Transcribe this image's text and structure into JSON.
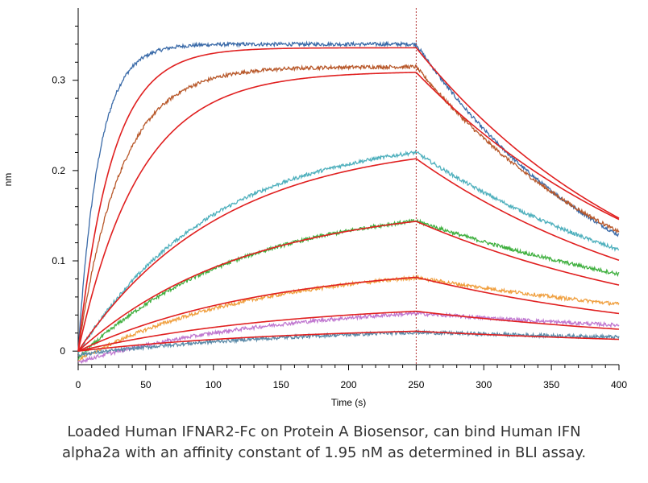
{
  "chart_data": {
    "type": "line",
    "title": "",
    "xlabel": "Time (s)",
    "ylabel": "nm",
    "xlim": [
      0,
      400
    ],
    "ylim": [
      -0.015,
      0.38
    ],
    "x_ticks": [
      0,
      50,
      100,
      150,
      200,
      250,
      300,
      350,
      400
    ],
    "y_ticks": [
      0,
      0.1,
      0.2,
      0.3
    ],
    "y_tick_labels": [
      "0",
      "0.1",
      "0.2",
      "0.3"
    ],
    "grid": false,
    "legend": "none",
    "dissociation_start": 250,
    "fit_color": "#e02020",
    "marker_line_color": "#b03030",
    "series": [
      {
        "color": "#3a6aa8",
        "plateau": 0.34,
        "k_on": 0.065,
        "k_off": 0.0065,
        "start": 0
      },
      {
        "color": "#b8582a",
        "plateau": 0.315,
        "k_on": 0.032,
        "k_off": 0.0058,
        "start": 0
      },
      {
        "color": "#4fb0bd",
        "plateau": 0.24,
        "k_on": 0.01,
        "k_off": 0.0045,
        "start": -0.002
      },
      {
        "color": "#40b040",
        "plateau": 0.165,
        "k_on": 0.0085,
        "k_off": 0.0035,
        "start": -0.008
      },
      {
        "color": "#f0a040",
        "plateau": 0.098,
        "k_on": 0.0075,
        "k_off": 0.003,
        "start": -0.01
      },
      {
        "color": "#c078d0",
        "plateau": 0.055,
        "k_on": 0.0065,
        "k_off": 0.0025,
        "start": -0.012
      },
      {
        "color": "#5a8aa8",
        "plateau": 0.028,
        "k_on": 0.006,
        "k_off": 0.002,
        "start": -0.004
      }
    ],
    "fits": [
      {
        "plateau": 0.336,
        "k_on": 0.04,
        "k_off": 0.0055
      },
      {
        "plateau": 0.31,
        "k_on": 0.022,
        "k_off": 0.005
      },
      {
        "plateau": 0.235,
        "k_on": 0.0095,
        "k_off": 0.005
      },
      {
        "plateau": 0.165,
        "k_on": 0.0082,
        "k_off": 0.0045
      },
      {
        "plateau": 0.098,
        "k_on": 0.0072,
        "k_off": 0.0045
      },
      {
        "plateau": 0.055,
        "k_on": 0.0065,
        "k_off": 0.004
      },
      {
        "plateau": 0.028,
        "k_on": 0.0062,
        "k_off": 0.0035
      }
    ]
  },
  "caption": {
    "line1": "Loaded Human IFNAR2-Fc on Protein A Biosensor, can bind Human IFN",
    "line2": "alpha2a with an affinity constant of 1.95 nM as determined in BLI assay."
  }
}
